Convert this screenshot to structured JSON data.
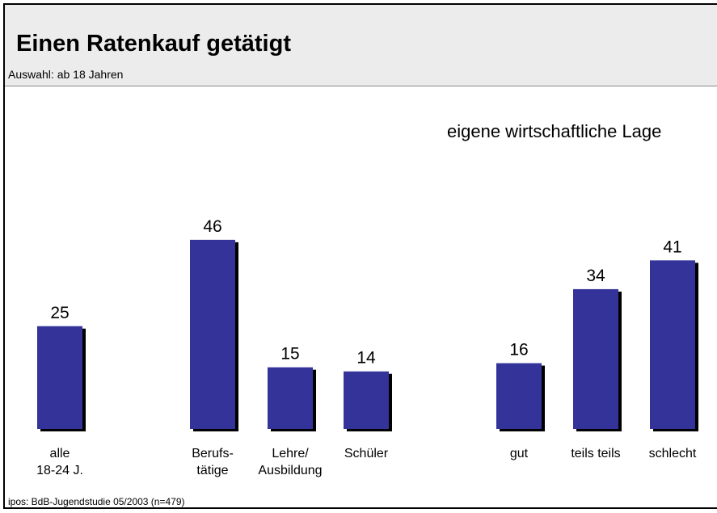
{
  "chart_data": {
    "type": "bar",
    "title": "Einen Ratenkauf getätigt",
    "subtitle": "Auswahl: ab 18 Jahren",
    "annotation": "eigene wirtschaftliche Lage",
    "source": "ipos: BdB-Jugendstudie 05/2003  (n=479)",
    "categories": [
      "alle\n18-24 J.",
      "Berufs-\ntätige",
      "Lehre/\nAusbildung",
      "Schüler",
      "gut",
      "teils teils",
      "schlecht"
    ],
    "values": [
      25,
      46,
      15,
      14,
      16,
      34,
      41
    ],
    "color": "#333399"
  }
}
